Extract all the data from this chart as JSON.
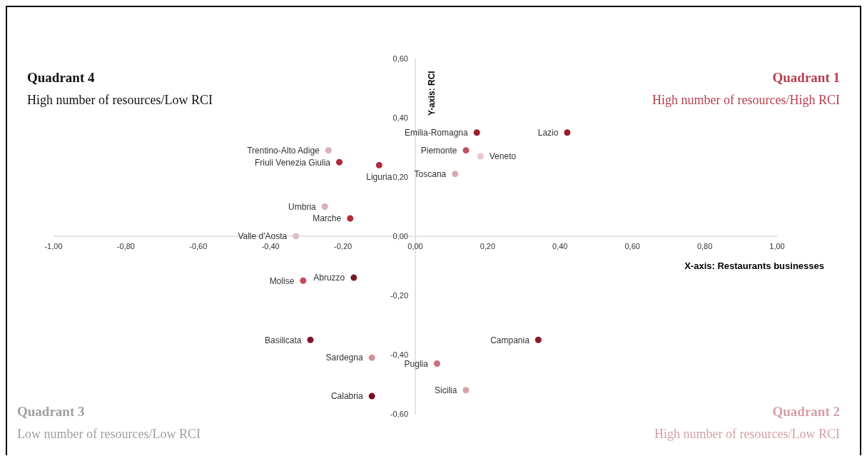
{
  "chart_data": {
    "type": "scatter",
    "xlabel": "X-axis: Restaurants businesses",
    "ylabel": "Y-axis: RCI",
    "marker": "circle",
    "legend": false,
    "grid": false,
    "xlim": [
      -1,
      1
    ],
    "ylim": [
      -0.6,
      0.6
    ],
    "xticks": [
      {
        "value": -1,
        "label": "-1,00"
      },
      {
        "value": -0.8,
        "label": "-0,80"
      },
      {
        "value": -0.6,
        "label": "-0,60"
      },
      {
        "value": -0.4,
        "label": "-0,40"
      },
      {
        "value": -0.2,
        "label": "-0,20"
      },
      {
        "value": 0,
        "label": "0,00"
      },
      {
        "value": 0.2,
        "label": "0,20"
      },
      {
        "value": 0.4,
        "label": "0,40"
      },
      {
        "value": 0.6,
        "label": "0,60"
      },
      {
        "value": 0.8,
        "label": "0,80"
      },
      {
        "value": 1,
        "label": "1,00"
      }
    ],
    "yticks": [
      {
        "value": 0.6,
        "label": "0,60"
      },
      {
        "value": 0.4,
        "label": "0,40"
      },
      {
        "value": 0.2,
        "label": "0,20"
      },
      {
        "value": 0,
        "label": "0,00"
      },
      {
        "value": -0.2,
        "label": "-0,20"
      },
      {
        "value": -0.4,
        "label": "-0,40"
      },
      {
        "value": -0.6,
        "label": "-0,60"
      }
    ],
    "series": [
      {
        "name": "Emilia-Romagna",
        "color": "#a01c2c",
        "x": [
          0.17
        ],
        "values": [
          0.35
        ]
      },
      {
        "name": "Lazio",
        "color": "#9a1b2e",
        "x": [
          0.42
        ],
        "values": [
          0.35
        ]
      },
      {
        "name": "Piemonte",
        "color": "#c0505e",
        "x": [
          0.14
        ],
        "values": [
          0.29
        ]
      },
      {
        "name": "Veneto",
        "color": "#e8c8cc",
        "x": [
          0.18
        ],
        "values": [
          0.27
        ]
      },
      {
        "name": "Toscana",
        "color": "#d8aab0",
        "x": [
          0.11
        ],
        "values": [
          0.21
        ]
      },
      {
        "name": "Trentino-Alto Adige",
        "color": "#dcb0b8",
        "x": [
          -0.24
        ],
        "values": [
          0.29
        ]
      },
      {
        "name": "Friuli Venezia Giulia",
        "color": "#b0283a",
        "x": [
          -0.21
        ],
        "values": [
          0.25
        ]
      },
      {
        "name": "Liguria",
        "color": "#b0283a",
        "x": [
          -0.1
        ],
        "values": [
          0.24
        ]
      },
      {
        "name": "Umbria",
        "color": "#d8b0b8",
        "x": [
          -0.25
        ],
        "values": [
          0.1
        ]
      },
      {
        "name": "Marche",
        "color": "#b52838",
        "x": [
          -0.18
        ],
        "values": [
          0.06
        ]
      },
      {
        "name": "Valle d'Aosta",
        "color": "#dcc0c6",
        "x": [
          -0.33
        ],
        "values": [
          0.0
        ]
      },
      {
        "name": "Molise",
        "color": "#c84858",
        "x": [
          -0.31
        ],
        "values": [
          -0.15
        ]
      },
      {
        "name": "Abruzzo",
        "color": "#7a1a28",
        "x": [
          -0.17
        ],
        "values": [
          -0.14
        ]
      },
      {
        "name": "Basilicata",
        "color": "#7a1a28",
        "x": [
          -0.29
        ],
        "values": [
          -0.35
        ]
      },
      {
        "name": "Sardegna",
        "color": "#d0909a",
        "x": [
          -0.12
        ],
        "values": [
          -0.41
        ]
      },
      {
        "name": "Puglia",
        "color": "#c87080",
        "x": [
          0.06
        ],
        "values": [
          -0.43
        ]
      },
      {
        "name": "Campania",
        "color": "#8a1a2a",
        "x": [
          0.34
        ],
        "values": [
          -0.35
        ]
      },
      {
        "name": "Sicilia",
        "color": "#d8a0a8",
        "x": [
          0.14
        ],
        "values": [
          -0.52
        ]
      },
      {
        "name": "Calabria",
        "color": "#7a1020",
        "x": [
          -0.12
        ],
        "values": [
          -0.54
        ]
      }
    ],
    "annotations": [
      "Quadrant 4",
      "High number of resources/Low RCI",
      "Quadrant 1",
      "High number of resources/High RCI",
      "Quadrant 3",
      "Low number of resources/Low RCI",
      "Quadrant 2",
      "High number of resources/Low RCI"
    ]
  }
}
